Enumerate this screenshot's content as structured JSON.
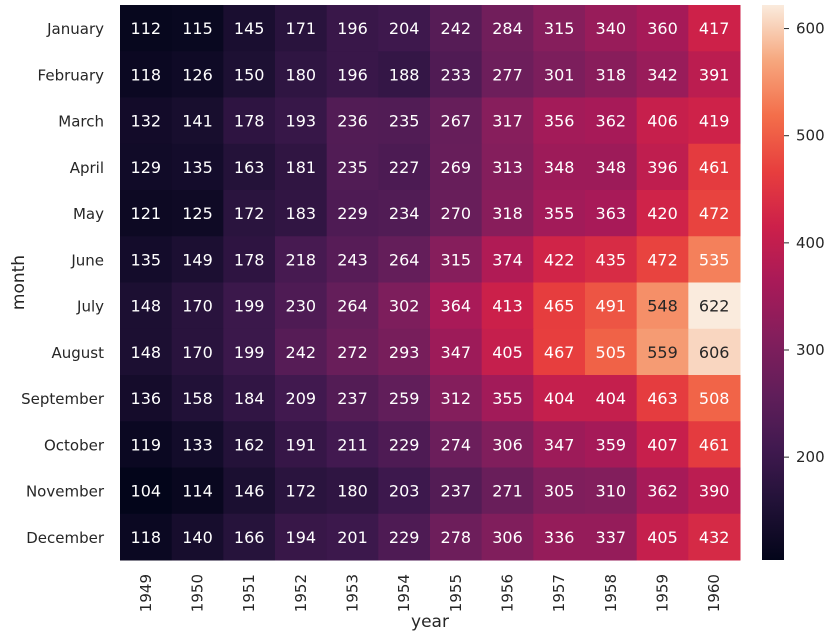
{
  "chart_data": {
    "type": "heatmap",
    "xlabel": "year",
    "ylabel": "month",
    "x": [
      "1949",
      "1950",
      "1951",
      "1952",
      "1953",
      "1954",
      "1955",
      "1956",
      "1957",
      "1958",
      "1959",
      "1960"
    ],
    "y": [
      "January",
      "February",
      "March",
      "April",
      "May",
      "June",
      "July",
      "August",
      "September",
      "October",
      "November",
      "December"
    ],
    "values": [
      [
        112,
        115,
        145,
        171,
        196,
        204,
        242,
        284,
        315,
        340,
        360,
        417
      ],
      [
        118,
        126,
        150,
        180,
        196,
        188,
        233,
        277,
        301,
        318,
        342,
        391
      ],
      [
        132,
        141,
        178,
        193,
        236,
        235,
        267,
        317,
        356,
        362,
        406,
        419
      ],
      [
        129,
        135,
        163,
        181,
        235,
        227,
        269,
        313,
        348,
        348,
        396,
        461
      ],
      [
        121,
        125,
        172,
        183,
        229,
        234,
        270,
        318,
        355,
        363,
        420,
        472
      ],
      [
        135,
        149,
        178,
        218,
        243,
        264,
        315,
        374,
        422,
        435,
        472,
        535
      ],
      [
        148,
        170,
        199,
        230,
        264,
        302,
        364,
        413,
        465,
        491,
        548,
        622
      ],
      [
        148,
        170,
        199,
        242,
        272,
        293,
        347,
        405,
        467,
        505,
        559,
        606
      ],
      [
        136,
        158,
        184,
        209,
        237,
        259,
        312,
        355,
        404,
        404,
        463,
        508
      ],
      [
        119,
        133,
        162,
        191,
        211,
        229,
        274,
        306,
        347,
        359,
        407,
        461
      ],
      [
        104,
        114,
        146,
        172,
        180,
        203,
        237,
        271,
        305,
        310,
        362,
        390
      ],
      [
        118,
        140,
        166,
        194,
        201,
        229,
        278,
        306,
        336,
        337,
        405,
        432
      ]
    ],
    "vmin": 104,
    "vmax": 622,
    "colorbar": {
      "ticks": [
        200,
        300,
        400,
        500,
        600
      ],
      "colormap": "rocket"
    },
    "annotated": true
  }
}
